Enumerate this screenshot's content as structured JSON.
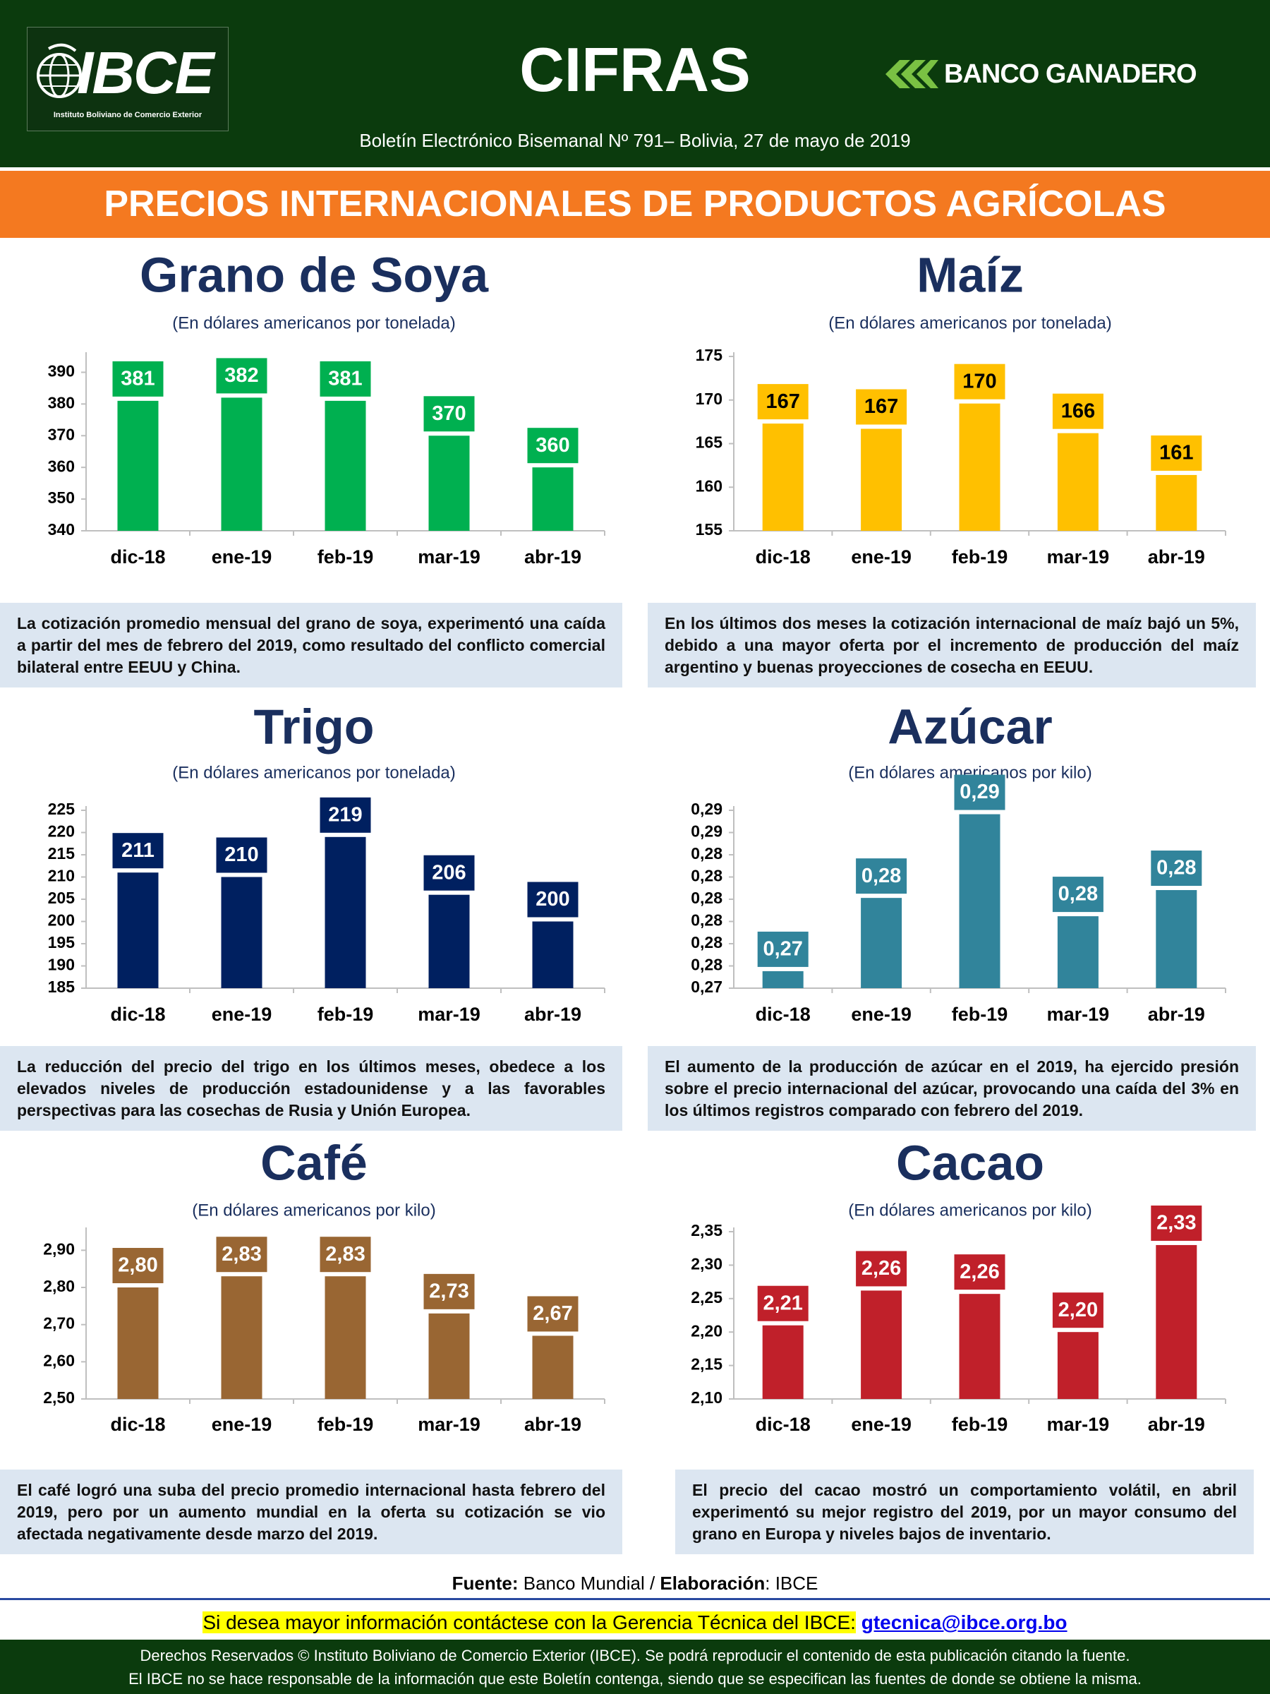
{
  "header": {
    "logo_left": "IBCE",
    "logo_left_caption": "Instituto Boliviano de Comercio Exterior",
    "title": "CIFRAS",
    "logo_right": "BANCO GANADERO",
    "subtitle": "Boletín Electrónico Bisemanal Nº 791– Bolivia, 27 de mayo de 2019"
  },
  "banner": "PRECIOS INTERNACIONALES DE PRODUCTOS AGRÍCOLAS",
  "chart_data": [
    {
      "type": "bar",
      "title": "Grano de Soya",
      "subtitle": "(En dólares americanos por tonelada)",
      "categories": [
        "dic-18",
        "ene-19",
        "feb-19",
        "mar-19",
        "abr-19"
      ],
      "values": [
        381,
        382,
        381,
        370,
        360
      ],
      "color": "#00b050",
      "label_color": "#ffffff",
      "ylim": [
        340,
        395
      ],
      "yticks": [
        340,
        350,
        360,
        370,
        380,
        390
      ],
      "note": "La cotización promedio mensual del grano de soya, experimentó una caída a partir del mes de febrero del 2019, como resultado del conflicto comercial bilateral entre EEUU y China."
    },
    {
      "type": "bar",
      "title": "Maíz",
      "subtitle": "(En dólares americanos por tonelada)",
      "categories": [
        "dic-18",
        "ene-19",
        "feb-19",
        "mar-19",
        "abr-19"
      ],
      "values": [
        167.3,
        166.7,
        169.6,
        166.2,
        161.4
      ],
      "value_labels": [
        "167",
        "167",
        "170",
        "166",
        "161"
      ],
      "color": "#ffc000",
      "label_color": "#000000",
      "ylim": [
        155,
        175
      ],
      "yticks": [
        155,
        160,
        165,
        170,
        175
      ],
      "note": "En los últimos dos meses la cotización internacional de maíz bajó un 5%, debido a una mayor oferta por el incremento de producción del maíz argentino y buenas proyecciones de cosecha en EEUU."
    },
    {
      "type": "bar",
      "title": "Trigo",
      "subtitle": "(En dólares americanos por tonelada)",
      "categories": [
        "dic-18",
        "ene-19",
        "feb-19",
        "mar-19",
        "abr-19"
      ],
      "values": [
        211,
        210,
        219,
        206,
        200
      ],
      "color": "#002060",
      "label_color": "#ffffff",
      "ylim": [
        185,
        225
      ],
      "yticks": [
        185,
        190,
        195,
        200,
        205,
        210,
        215,
        220,
        225
      ],
      "note": "La reducción del precio del trigo en los últimos meses, obedece a los elevados niveles de producción estadounidense y a las favorables perspectivas para las cosechas de Rusia y Unión Europea."
    },
    {
      "type": "bar",
      "title": "Azúcar",
      "subtitle": "(En dólares americanos por kilo)",
      "categories": [
        "dic-18",
        "ene-19",
        "feb-19",
        "mar-19",
        "abr-19"
      ],
      "values": [
        0.2748,
        0.2804,
        0.2868,
        0.279,
        0.281
      ],
      "value_labels": [
        "0,27",
        "0,28",
        "0,29",
        "0,28",
        "0,28"
      ],
      "color": "#31849b",
      "label_color": "#ffffff",
      "ylim": [
        0.2735,
        0.2871
      ],
      "yticks": [
        {
          "value": 0.2735,
          "label": "0,27"
        },
        {
          "value": 0.2752,
          "label": "0,28"
        },
        {
          "value": 0.2769,
          "label": "0,28"
        },
        {
          "value": 0.2786,
          "label": "0,28"
        },
        {
          "value": 0.2803,
          "label": "0,28"
        },
        {
          "value": 0.282,
          "label": "0,28"
        },
        {
          "value": 0.2837,
          "label": "0,28"
        },
        {
          "value": 0.2854,
          "label": "0,29"
        },
        {
          "value": 0.2871,
          "label": "0,29"
        }
      ],
      "note": "El aumento de la producción de azúcar en el 2019, ha ejercido presión sobre el precio internacional del azúcar, provocando una caída del 3% en los últimos registros comparado con febrero del 2019."
    },
    {
      "type": "bar",
      "title": "Café",
      "subtitle": "(En dólares americanos por kilo)",
      "categories": [
        "dic-18",
        "ene-19",
        "feb-19",
        "mar-19",
        "abr-19"
      ],
      "values": [
        2.8,
        2.83,
        2.83,
        2.73,
        2.67
      ],
      "value_labels": [
        "2,80",
        "2,83",
        "2,83",
        "2,73",
        "2,67"
      ],
      "color": "#996633",
      "label_color": "#ffffff",
      "ylim": [
        2.5,
        2.95
      ],
      "yticks": [
        {
          "value": 2.5,
          "label": "2,50"
        },
        {
          "value": 2.6,
          "label": "2,60"
        },
        {
          "value": 2.7,
          "label": "2,70"
        },
        {
          "value": 2.8,
          "label": "2,80"
        },
        {
          "value": 2.9,
          "label": "2,90"
        }
      ],
      "note": "El café logró una suba del precio promedio internacional hasta febrero del 2019, pero por un aumento mundial en la oferta su cotización se vio afectada negativamente desde marzo del 2019."
    },
    {
      "type": "bar",
      "title": "Cacao",
      "subtitle": "(En dólares americanos por kilo)",
      "categories": [
        "dic-18",
        "ene-19",
        "feb-19",
        "mar-19",
        "abr-19"
      ],
      "values": [
        2.21,
        2.262,
        2.257,
        2.2,
        2.33
      ],
      "value_labels": [
        "2,21",
        "2,26",
        "2,26",
        "2,20",
        "2,33"
      ],
      "color": "#c0202a",
      "label_color": "#ffffff",
      "ylim": [
        2.1,
        2.35
      ],
      "yticks": [
        {
          "value": 2.1,
          "label": "2,10"
        },
        {
          "value": 2.15,
          "label": "2,15"
        },
        {
          "value": 2.2,
          "label": "2,20"
        },
        {
          "value": 2.25,
          "label": "2,25"
        },
        {
          "value": 2.3,
          "label": "2,30"
        },
        {
          "value": 2.35,
          "label": "2,35"
        }
      ],
      "note": "El precio del cacao mostró un comportamiento volátil, en abril experimentó su mejor registro del 2019, por un mayor consumo del grano en Europa y niveles bajos de inventario."
    }
  ],
  "footer": {
    "source_label": "Fuente:",
    "source": "Banco Mundial /",
    "credit_label": "Elaboración",
    "credit": ": IBCE",
    "contact": "Si desea mayor información contáctese con la Gerencia Técnica del IBCE:",
    "email": "gtecnica@ibce.org.bo",
    "rights": "Derechos Reservados © Instituto Boliviano de Comercio Exterior (IBCE). Se podrá reproducir el contenido de esta publicación citando la fuente.",
    "disclaimer": "El IBCE no se hace responsable de la información que este Boletín contenga, siendo que se especifican las fuentes de donde se obtiene la misma."
  }
}
